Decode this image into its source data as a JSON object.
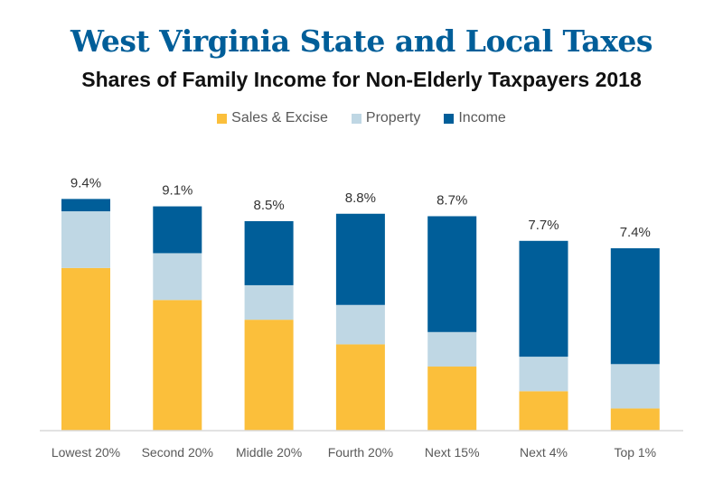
{
  "chart_data": {
    "type": "bar",
    "stacked": true,
    "title": "West Virginia State and Local Taxes",
    "subtitle": "Shares of Family Income for Non-Elderly Taxpayers 2018",
    "xlabel": "",
    "ylabel": "",
    "ylim": [
      0,
      9.4
    ],
    "grid": false,
    "legend_position": "top-center",
    "categories": [
      "Lowest 20%",
      "Second 20%",
      "Middle 20%",
      "Fourth 20%",
      "Next 15%",
      "Next 4%",
      "Top 1%"
    ],
    "series": [
      {
        "name": "Sales & Excise",
        "color": "#fbbf3b",
        "values": [
          6.6,
          5.3,
          4.5,
          3.5,
          2.6,
          1.6,
          0.9
        ]
      },
      {
        "name": "Property",
        "color": "#bfd7e4",
        "values": [
          2.3,
          1.9,
          1.4,
          1.6,
          1.4,
          1.4,
          1.8
        ]
      },
      {
        "name": "Income",
        "color": "#005e99",
        "values": [
          0.5,
          1.9,
          2.6,
          3.7,
          4.7,
          4.7,
          4.7
        ]
      }
    ],
    "totals": [
      "9.4%",
      "9.1%",
      "8.5%",
      "8.8%",
      "8.7%",
      "7.7%",
      "7.4%"
    ],
    "total_values": [
      9.4,
      9.1,
      8.5,
      8.8,
      8.7,
      7.7,
      7.4
    ]
  }
}
